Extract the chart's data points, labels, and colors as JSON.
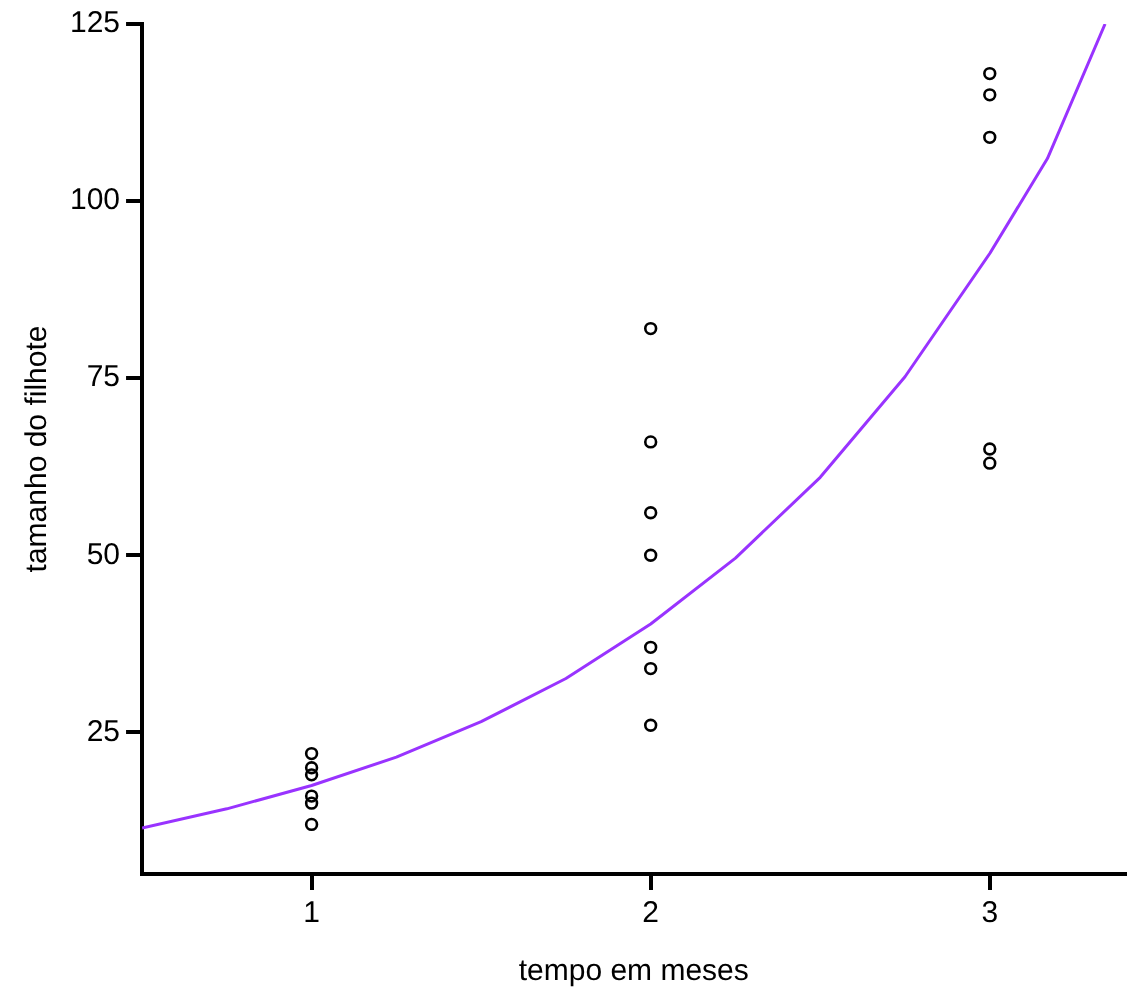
{
  "chart_data": {
    "type": "scatter",
    "xlabel": "tempo em meses",
    "ylabel": "tamanho do filhote",
    "xlim": [
      0.5,
      3.4
    ],
    "xticks": [
      1,
      2,
      3
    ],
    "ylim": [
      5,
      125
    ],
    "yticks": [
      25,
      50,
      75,
      100,
      125
    ],
    "grid": false,
    "legend": false,
    "marker": "circle",
    "series": [
      {
        "type": "scatter",
        "color": "#000000",
        "x": [
          1,
          1,
          1,
          1,
          1,
          1,
          2,
          2,
          2,
          2,
          2,
          2,
          2,
          3,
          3,
          3,
          3,
          3
        ],
        "values": [
          22,
          20,
          19,
          16,
          15,
          12,
          82,
          66,
          56,
          50,
          37,
          34,
          26,
          118,
          115,
          109,
          65,
          63
        ]
      },
      {
        "type": "line",
        "color": "#9933ff",
        "marker": "none",
        "x": [
          0.5,
          0.75,
          1,
          1.25,
          1.5,
          1.75,
          2,
          2.25,
          2.5,
          2.75,
          3,
          3.17,
          3.34
        ],
        "values": [
          11.5,
          14.2,
          17.5,
          21.5,
          26.5,
          32.6,
          40.3,
          49.6,
          61,
          75.2,
          92.6,
          106,
          125
        ]
      }
    ]
  }
}
